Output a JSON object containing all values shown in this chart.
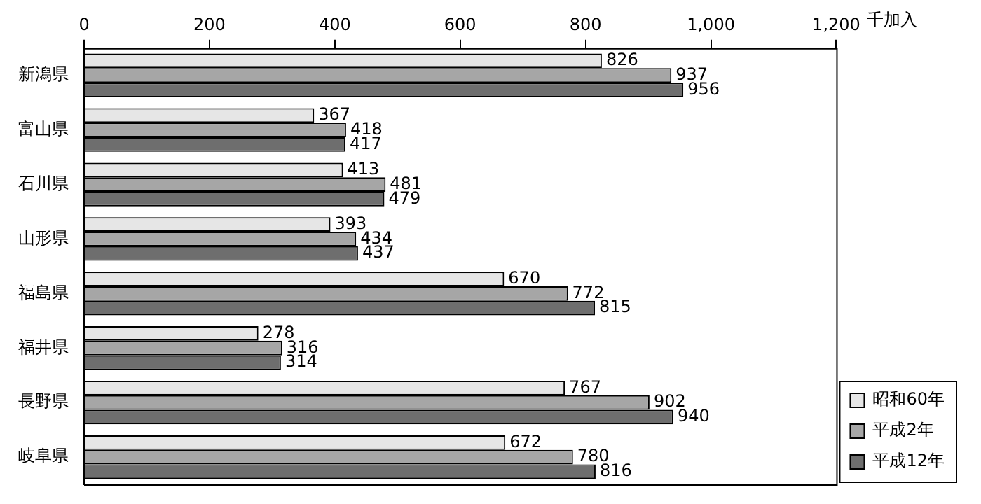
{
  "chart_data": {
    "type": "bar",
    "orientation": "horizontal",
    "xlabel": "千加入",
    "categories": [
      "新潟県",
      "富山県",
      "石川県",
      "山形県",
      "福島県",
      "福井県",
      "長野県",
      "岐阜県"
    ],
    "series": [
      {
        "name": "昭和60年",
        "color": "#e6e6e6",
        "values": [
          826,
          367,
          413,
          393,
          670,
          278,
          767,
          672
        ]
      },
      {
        "name": "平成2年",
        "color": "#a6a6a6",
        "values": [
          937,
          418,
          481,
          434,
          772,
          316,
          902,
          780
        ]
      },
      {
        "name": "平成12年",
        "color": "#6e6e6e",
        "values": [
          956,
          417,
          479,
          437,
          815,
          314,
          940,
          816
        ]
      }
    ],
    "xlim": [
      0,
      1200
    ],
    "xticks": [
      0,
      200,
      400,
      600,
      800,
      {
        "value": 1000,
        "label": "1,000"
      },
      {
        "value": 1200,
        "label": "1,200"
      }
    ],
    "data_labels": true,
    "grid": false,
    "legend": "bottom right"
  }
}
